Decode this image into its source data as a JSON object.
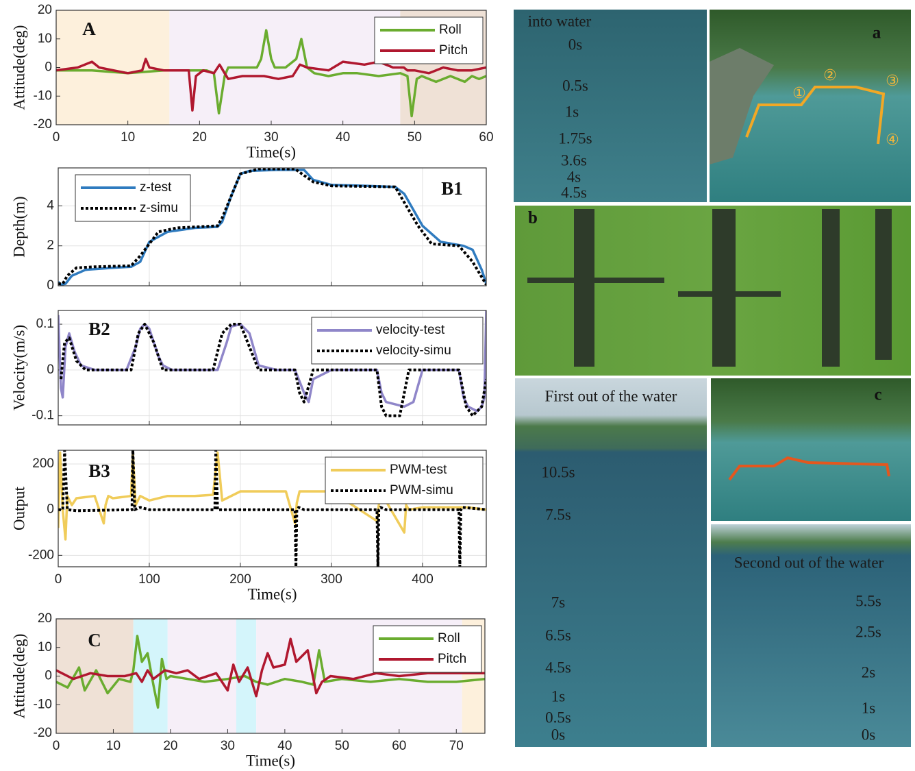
{
  "chart_data": [
    {
      "type": "line",
      "annotation": "A",
      "xlabel": "Time(s)",
      "ylabel": "Attitude(deg)",
      "xlim": [
        0,
        60
      ],
      "ylim": [
        -20,
        20
      ],
      "xticks": [
        0,
        10,
        20,
        30,
        40,
        50,
        60
      ],
      "yticks": [
        -20,
        -10,
        0,
        10,
        20
      ],
      "grid": false,
      "legend": "upper right",
      "spans": [
        {
          "x0": 0,
          "x1": 15.8,
          "color": "#fdf0dc"
        },
        {
          "x0": 15.8,
          "x1": 48,
          "color": "#f6eff8"
        },
        {
          "x0": 48,
          "x1": 60,
          "color": "#efe1d6"
        }
      ],
      "series": [
        {
          "name": "Roll",
          "color": "#6aac2f",
          "style": "solid",
          "x": [
            0,
            5,
            10,
            15,
            16,
            18,
            19,
            20,
            21,
            22,
            22.7,
            23.5,
            24,
            26,
            28,
            28.6,
            29.3,
            30,
            30.5,
            32,
            33.5,
            34.2,
            35,
            36,
            38,
            40,
            42,
            45,
            48,
            49,
            49.6,
            50.3,
            51,
            53,
            55,
            57,
            58,
            59,
            60
          ],
          "values": [
            -1,
            -1,
            -2,
            -1,
            -1,
            -1,
            -1,
            -1,
            -1,
            -2,
            -16,
            -3,
            0,
            0,
            0,
            3,
            13,
            3,
            0,
            0,
            3,
            10,
            0,
            -2,
            -3,
            -2,
            -2,
            -3,
            -2,
            -3,
            -17,
            -4,
            -3,
            -5,
            -3,
            -5,
            -3,
            -4,
            -3
          ]
        },
        {
          "name": "Pitch",
          "color": "#b0182f",
          "style": "solid",
          "x": [
            0,
            3,
            5,
            6,
            8,
            10,
            12,
            12.5,
            13,
            15,
            17,
            18.5,
            19,
            19.5,
            20.5,
            22,
            22.8,
            23.5,
            24,
            26,
            29,
            31,
            33,
            34,
            35,
            38,
            40,
            43,
            45,
            47,
            48.5,
            49,
            50,
            52,
            54,
            56,
            58,
            60
          ],
          "values": [
            -1,
            0,
            2,
            0,
            -1,
            -2,
            -1,
            3,
            0,
            -1,
            -1,
            -1,
            -15,
            -3,
            -1,
            -2,
            1,
            -2,
            -4,
            -3,
            -3,
            -4,
            -3,
            1,
            0,
            -1,
            2,
            1,
            2,
            0,
            0,
            -1,
            -1,
            -2,
            0,
            -1,
            -1,
            0
          ]
        }
      ]
    },
    {
      "type": "line",
      "annotation": "B1",
      "ylabel": "Depth(m)",
      "xlim": [
        0,
        470
      ],
      "ylim": [
        0,
        5.9
      ],
      "xticks": [
        0,
        100,
        200,
        300,
        400
      ],
      "xtick_labels": false,
      "yticks": [
        0,
        2,
        4
      ],
      "grid": true,
      "legend": "upper left",
      "series": [
        {
          "name": "z-test",
          "color": "#2f7bbf",
          "style": "solid",
          "x": [
            0,
            3,
            8,
            15,
            30,
            60,
            80,
            90,
            100,
            120,
            150,
            175,
            180,
            190,
            200,
            210,
            240,
            270,
            280,
            300,
            340,
            370,
            380,
            400,
            420,
            445,
            455,
            465,
            470
          ],
          "values": [
            0.2,
            0.05,
            0.1,
            0.5,
            0.8,
            0.9,
            0.95,
            1.2,
            2.2,
            2.7,
            2.9,
            2.95,
            3.2,
            4.5,
            5.6,
            5.75,
            5.8,
            5.8,
            5.3,
            5.05,
            5.0,
            4.95,
            4.6,
            3.0,
            2.2,
            2.0,
            1.8,
            0.8,
            0.1
          ]
        },
        {
          "name": "z-simu",
          "color": "#000000",
          "style": "dotted",
          "x": [
            0,
            5,
            10,
            20,
            40,
            80,
            90,
            110,
            130,
            175,
            180,
            200,
            220,
            260,
            280,
            300,
            370,
            395,
            410,
            440,
            455,
            470
          ],
          "values": [
            0.1,
            0.1,
            0.5,
            0.9,
            0.95,
            1.0,
            1.5,
            2.7,
            2.9,
            3.0,
            3.4,
            5.6,
            5.85,
            5.85,
            5.2,
            5.0,
            4.95,
            3.0,
            2.1,
            2.0,
            1.2,
            0.05
          ]
        }
      ]
    },
    {
      "type": "line",
      "annotation": "B2",
      "ylabel": "Velocity(m/s)",
      "xlim": [
        0,
        470
      ],
      "ylim": [
        -0.12,
        0.13
      ],
      "xticks": [
        0,
        100,
        200,
        300,
        400
      ],
      "xtick_labels": false,
      "yticks": [
        -0.1,
        0,
        0.1
      ],
      "grid": true,
      "legend": "upper right",
      "series": [
        {
          "name": "velocity-test",
          "color": "#8f86c9",
          "style": "solid",
          "x": [
            0,
            3,
            5,
            8,
            12,
            18,
            25,
            40,
            60,
            75,
            85,
            90,
            95,
            100,
            110,
            115,
            125,
            150,
            175,
            185,
            190,
            200,
            210,
            220,
            240,
            260,
            270,
            275,
            280,
            300,
            330,
            350,
            355,
            360,
            380,
            390,
            400,
            420,
            430,
            440,
            445,
            450,
            460,
            465,
            468,
            470
          ],
          "values": [
            0.12,
            -0.04,
            -0.06,
            0.05,
            0.08,
            0.04,
            0.01,
            0,
            0,
            0,
            0.05,
            0.09,
            0.1,
            0.09,
            0.03,
            0.01,
            0,
            0,
            0,
            0.06,
            0.095,
            0.1,
            0.08,
            0.01,
            0,
            0,
            -0.05,
            -0.07,
            -0.02,
            0,
            0,
            0,
            -0.05,
            -0.07,
            -0.08,
            -0.07,
            0,
            0,
            0,
            0,
            -0.06,
            -0.08,
            -0.09,
            -0.08,
            -0.06,
            0.13
          ]
        },
        {
          "name": "velocity-simu",
          "color": "#000000",
          "style": "dotted",
          "x": [
            3,
            7,
            12,
            20,
            30,
            80,
            88,
            95,
            105,
            115,
            170,
            180,
            190,
            200,
            210,
            220,
            260,
            265,
            270,
            280,
            350,
            355,
            360,
            375,
            385,
            440,
            448,
            455,
            465,
            470
          ],
          "values": [
            -0.02,
            0.06,
            0.07,
            0.02,
            0,
            0,
            0.08,
            0.1,
            0.06,
            0,
            0,
            0.08,
            0.1,
            0.1,
            0.05,
            0,
            0,
            -0.05,
            -0.07,
            0,
            0,
            -0.08,
            -0.1,
            -0.1,
            0,
            0,
            -0.08,
            -0.1,
            -0.08,
            -0.02
          ]
        }
      ]
    },
    {
      "type": "line",
      "annotation": "B3",
      "xlabel": "Time(s)",
      "ylabel": "Output",
      "xlim": [
        0,
        470
      ],
      "ylim": [
        -250,
        260
      ],
      "xticks": [
        0,
        100,
        200,
        300,
        400
      ],
      "yticks": [
        -200,
        0,
        200
      ],
      "grid": true,
      "legend": "upper right",
      "series": [
        {
          "name": "PWM-test",
          "color": "#f0cc5a",
          "style": "solid",
          "x": [
            0,
            2,
            5,
            8,
            10,
            15,
            20,
            40,
            50,
            52,
            55,
            60,
            80,
            82,
            85,
            90,
            100,
            120,
            150,
            170,
            175,
            180,
            200,
            250,
            260,
            262,
            265,
            300,
            350,
            352,
            355,
            380,
            382,
            385,
            400,
            450,
            470
          ],
          "values": [
            -80,
            250,
            0,
            -130,
            60,
            20,
            50,
            60,
            -60,
            20,
            60,
            50,
            60,
            250,
            20,
            60,
            40,
            60,
            60,
            65,
            250,
            40,
            80,
            80,
            -60,
            30,
            80,
            80,
            -50,
            20,
            70,
            -100,
            20,
            0,
            10,
            10,
            0
          ]
        },
        {
          "name": "PWM-simu",
          "color": "#000000",
          "style": "dotted",
          "x": [
            0,
            5,
            7,
            10,
            20,
            80,
            81,
            82,
            84,
            90,
            100,
            170,
            172,
            173,
            175,
            180,
            260,
            261,
            262,
            264,
            270,
            350,
            351,
            352,
            354,
            360,
            440,
            441,
            442,
            444,
            470
          ],
          "values": [
            0,
            0,
            260,
            0,
            -5,
            0,
            0,
            260,
            0,
            10,
            0,
            0,
            0,
            260,
            0,
            0,
            0,
            -250,
            0,
            10,
            0,
            0,
            -250,
            0,
            10,
            0,
            0,
            -250,
            0,
            10,
            0
          ]
        }
      ]
    },
    {
      "type": "line",
      "annotation": "C",
      "xlabel": "Time(s)",
      "ylabel": "Attitude(deg)",
      "xlim": [
        0,
        75
      ],
      "ylim": [
        -20,
        20
      ],
      "xticks": [
        0,
        10,
        20,
        30,
        40,
        50,
        60,
        70
      ],
      "yticks": [
        -20,
        -10,
        0,
        10,
        20
      ],
      "grid": false,
      "legend": "upper right",
      "spans": [
        {
          "x0": 0,
          "x1": 13.5,
          "color": "#efe1d6"
        },
        {
          "x0": 13.5,
          "x1": 19.5,
          "color": "#d4f5fb"
        },
        {
          "x0": 19.5,
          "x1": 31.5,
          "color": "#f6eff8"
        },
        {
          "x0": 31.5,
          "x1": 35,
          "color": "#d4f5fb"
        },
        {
          "x0": 35,
          "x1": 71,
          "color": "#f6eff8"
        },
        {
          "x0": 71,
          "x1": 75,
          "color": "#fdf0dc"
        }
      ],
      "series": [
        {
          "name": "Roll",
          "color": "#6aac2f",
          "style": "solid",
          "x": [
            0,
            2,
            4,
            5,
            7,
            9,
            11,
            13,
            13.5,
            14.2,
            15,
            16,
            17,
            17.8,
            18.5,
            19.3,
            20,
            23,
            26,
            30,
            33,
            35,
            37,
            40,
            43,
            45,
            46,
            47,
            50,
            55,
            60,
            65,
            70,
            75
          ],
          "values": [
            -2,
            -4,
            3,
            -5,
            2,
            -6,
            -1,
            -2,
            2,
            14,
            5,
            8,
            -3,
            -11,
            6,
            -1,
            0,
            -1,
            -2,
            -1,
            0,
            -2,
            -3,
            -1,
            -2,
            -3,
            9,
            -2,
            -1,
            -2,
            -1,
            -2,
            -2,
            -1
          ]
        },
        {
          "name": "Pitch",
          "color": "#b0182f",
          "style": "solid",
          "x": [
            0,
            3,
            6,
            9,
            12,
            14,
            15,
            16,
            17,
            19,
            21,
            23,
            25,
            28,
            30,
            31,
            32,
            33.5,
            35,
            36,
            37,
            38,
            40,
            41,
            42,
            44,
            45.5,
            46.5,
            48,
            52,
            56,
            60,
            65,
            70,
            75
          ],
          "values": [
            2,
            -1,
            1,
            0,
            0,
            1,
            -2,
            2,
            -1,
            2,
            1,
            2,
            -1,
            1,
            -5,
            4,
            -2,
            3,
            -7,
            2,
            8,
            3,
            4,
            13,
            5,
            9,
            -6,
            -2,
            0,
            -1,
            1,
            0,
            1,
            1,
            1
          ]
        }
      ]
    }
  ],
  "photos": {
    "into_water": {
      "title": "into water",
      "times": [
        "0s",
        "0.5s",
        "1s",
        "1.75s",
        "3.6s",
        "4s",
        "4.5s"
      ]
    },
    "aerial_a": {
      "label": "a",
      "waypoints": [
        "①",
        "②",
        "③",
        "④"
      ]
    },
    "underwater_b": {
      "label": "b"
    },
    "first_out": {
      "title": "First out of the water",
      "times": [
        "10.5s",
        "7.5s",
        "7s",
        "6.5s",
        "4.5s",
        "1s",
        "0.5s",
        "0s"
      ]
    },
    "aerial_c": {
      "label": "c"
    },
    "second_out": {
      "title": "Second out of the water",
      "times": [
        "5.5s",
        "2.5s",
        "2s",
        "1s",
        "0s"
      ]
    }
  }
}
